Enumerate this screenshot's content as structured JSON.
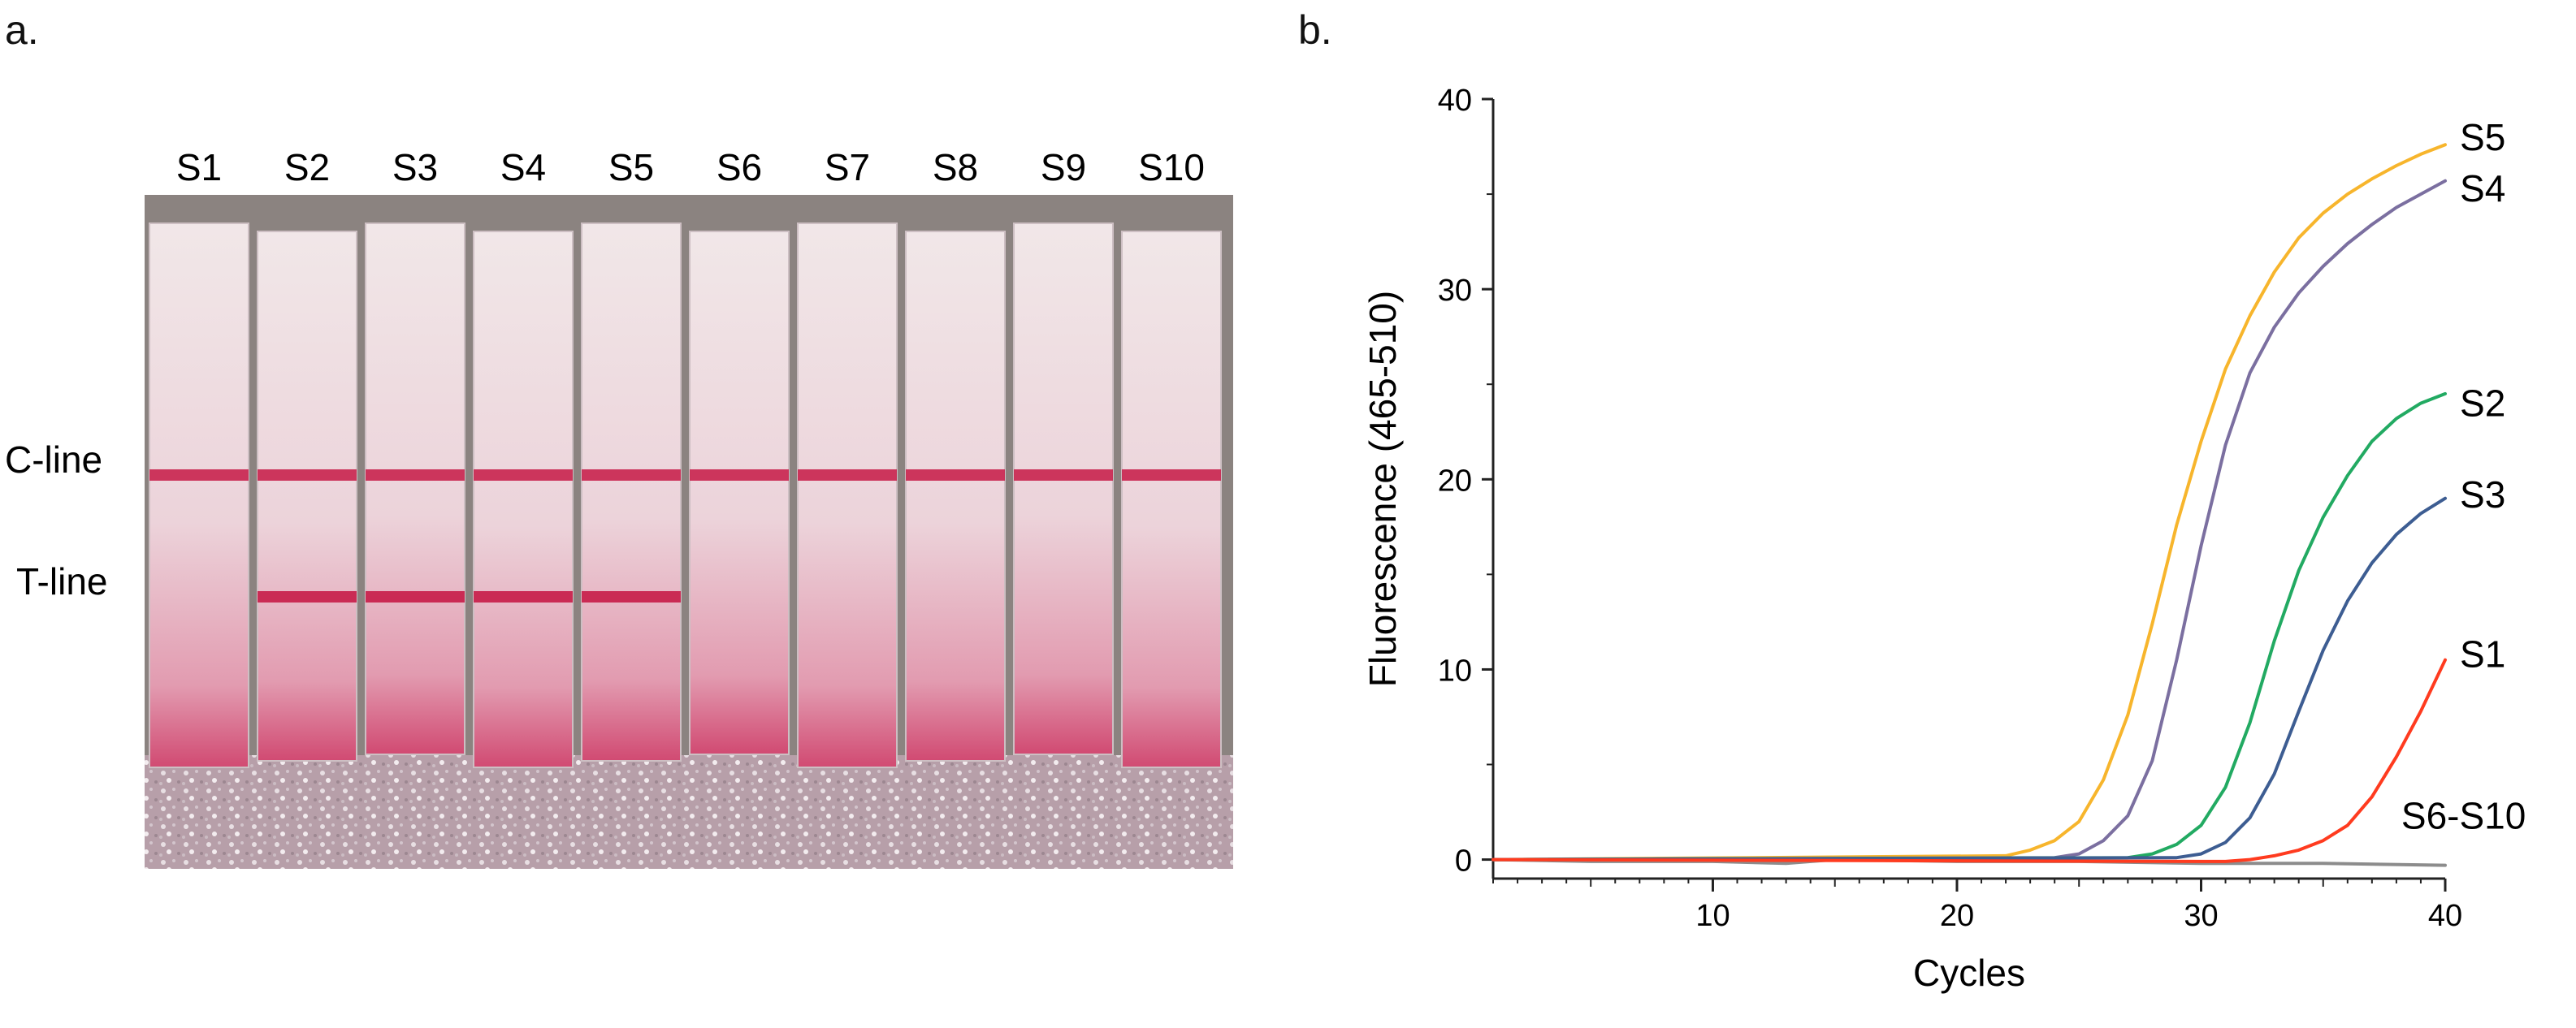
{
  "panel_a": {
    "label": "a.",
    "strip_labels": [
      "S1",
      "S2",
      "S3",
      "S4",
      "S5",
      "S6",
      "S7",
      "S8",
      "S9",
      "S10"
    ],
    "row_labels": {
      "control": "C-line",
      "test": "T-line"
    },
    "test_line_present": [
      false,
      true,
      true,
      true,
      true,
      false,
      false,
      false,
      false,
      false
    ],
    "control_line_present": [
      true,
      true,
      true,
      true,
      true,
      true,
      true,
      true,
      true,
      true
    ],
    "colors": {
      "line": "#c8234e",
      "strip": "#f1e7e8",
      "backdrop": "#8b8380",
      "pad": "#b79fa9"
    }
  },
  "panel_b": {
    "label": "b."
  },
  "chart_data": {
    "type": "line",
    "xlabel": "Cycles",
    "ylabel": "Fluorescence (465-510)",
    "xlim": [
      1,
      40
    ],
    "ylim": [
      -1,
      40
    ],
    "xticks": [
      10,
      20,
      30,
      40
    ],
    "yticks": [
      0,
      10,
      20,
      30,
      40
    ],
    "grid": false,
    "series": [
      {
        "name": "S5",
        "color": "#f7b52c",
        "x": [
          1,
          22,
          23,
          24,
          25,
          26,
          27,
          28,
          29,
          30,
          31,
          32,
          33,
          34,
          35,
          36,
          37,
          38,
          39,
          40
        ],
        "y": [
          0,
          0.2,
          0.5,
          1,
          2,
          4.2,
          7.6,
          12.4,
          17.6,
          22.0,
          25.8,
          28.6,
          30.9,
          32.7,
          34.0,
          35.0,
          35.8,
          36.5,
          37.1,
          37.6
        ]
      },
      {
        "name": "S4",
        "color": "#7b6fa0",
        "x": [
          1,
          24,
          25,
          26,
          27,
          28,
          29,
          30,
          31,
          32,
          33,
          34,
          35,
          36,
          37,
          38,
          39,
          40
        ],
        "y": [
          0,
          0.1,
          0.3,
          1,
          2.3,
          5.2,
          10.5,
          16.5,
          21.8,
          25.6,
          28.0,
          29.8,
          31.2,
          32.4,
          33.4,
          34.3,
          35.0,
          35.7
        ]
      },
      {
        "name": "S2",
        "color": "#22aa62",
        "x": [
          1,
          27,
          28,
          29,
          30,
          31,
          32,
          33,
          34,
          35,
          36,
          37,
          38,
          39,
          40
        ],
        "y": [
          0,
          0.1,
          0.3,
          0.8,
          1.8,
          3.8,
          7.2,
          11.5,
          15.2,
          18.0,
          20.2,
          22.0,
          23.2,
          24.0,
          24.5
        ]
      },
      {
        "name": "S3",
        "color": "#3d5d92",
        "x": [
          1,
          29,
          30,
          31,
          32,
          33,
          34,
          35,
          36,
          37,
          38,
          39,
          40
        ],
        "y": [
          0,
          0.1,
          0.3,
          0.9,
          2.2,
          4.5,
          7.8,
          11.0,
          13.6,
          15.6,
          17.1,
          18.2,
          19.0
        ]
      },
      {
        "name": "S1",
        "color": "#ff3b1f",
        "x": [
          1,
          30,
          31,
          32,
          33,
          34,
          35,
          36,
          37,
          38,
          39,
          40
        ],
        "y": [
          0,
          -0.1,
          -0.1,
          0,
          0.2,
          0.5,
          1,
          1.8,
          3.3,
          5.4,
          7.8,
          10.5
        ]
      },
      {
        "name": "S6-S10",
        "color": "#8c8c8c",
        "x": [
          1,
          5,
          10,
          13,
          15,
          20,
          25,
          30,
          35,
          40
        ],
        "y": [
          0,
          -0.1,
          -0.1,
          -0.2,
          0,
          -0.1,
          -0.1,
          -0.2,
          -0.2,
          -0.3
        ]
      }
    ],
    "series_labels": [
      {
        "text": "S5",
        "x": 40.6,
        "y": 38.0
      },
      {
        "text": "S4",
        "x": 40.6,
        "y": 35.3
      },
      {
        "text": "S2",
        "x": 40.6,
        "y": 24.0
      },
      {
        "text": "S3",
        "x": 40.6,
        "y": 19.2
      },
      {
        "text": "S1",
        "x": 40.6,
        "y": 10.8
      },
      {
        "text": "S6-S10",
        "x": 38.2,
        "y": 2.3
      }
    ]
  }
}
